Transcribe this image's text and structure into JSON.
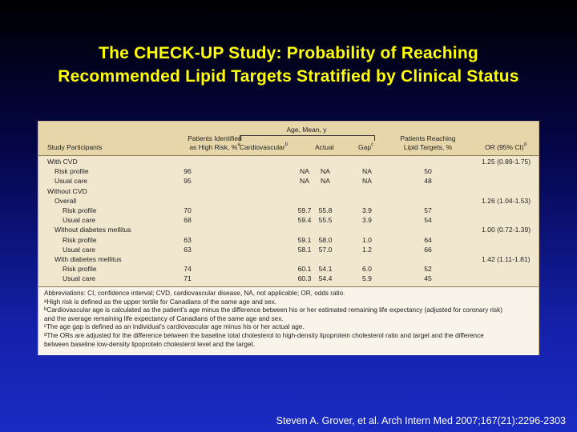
{
  "title": {
    "line1": "The CHECK-UP Study: Probability of Reaching",
    "line2": "Recommended Lipid Targets Stratified by Clinical Status"
  },
  "table": {
    "headers": {
      "participants": "Study Participants",
      "high_risk_line1": "Patients Identified",
      "high_risk_line2": "as High Risk, %",
      "high_risk_sup": "a",
      "age_group": "Age, Mean, y",
      "cardio": "Cardiovascular",
      "cardio_sup": "b",
      "actual": "Actual",
      "gap": "Gap",
      "gap_sup": "c",
      "reaching_line1": "Patients Reaching",
      "reaching_line2": "Lipid Targets, %",
      "or": "OR (95% CI)",
      "or_sup": "d"
    },
    "rows": [
      {
        "label": "With CVD",
        "level": 0,
        "risk": "",
        "cardio": "",
        "actual": "",
        "gap": "",
        "reach": "",
        "or": "1.25 (0.89-1.75)"
      },
      {
        "label": "Risk profile",
        "level": 1,
        "risk": "96",
        "cardio": "NA",
        "actual": "NA",
        "gap": "NA",
        "reach": "50",
        "or": ""
      },
      {
        "label": "Usual care",
        "level": 1,
        "risk": "95",
        "cardio": "NA",
        "actual": "NA",
        "gap": "NA",
        "reach": "48",
        "or": ""
      },
      {
        "label": "Without CVD",
        "level": 0,
        "risk": "",
        "cardio": "",
        "actual": "",
        "gap": "",
        "reach": "",
        "or": ""
      },
      {
        "label": "Overall",
        "level": 1,
        "risk": "",
        "cardio": "",
        "actual": "",
        "gap": "",
        "reach": "",
        "or": "1.26 (1.04-1.53)"
      },
      {
        "label": "Risk profile",
        "level": 2,
        "risk": "70",
        "cardio": "59.7",
        "actual": "55.8",
        "gap": "3.9",
        "reach": "57",
        "or": ""
      },
      {
        "label": "Usual care",
        "level": 2,
        "risk": "68",
        "cardio": "59.4",
        "actual": "55.5",
        "gap": "3.9",
        "reach": "54",
        "or": ""
      },
      {
        "label": "Without diabetes mellitus",
        "level": 1,
        "risk": "",
        "cardio": "",
        "actual": "",
        "gap": "",
        "reach": "",
        "or": "1.00 (0.72-1.39)"
      },
      {
        "label": "Risk profile",
        "level": 2,
        "risk": "63",
        "cardio": "59.1",
        "actual": "58.0",
        "gap": "1.0",
        "reach": "64",
        "or": ""
      },
      {
        "label": "Usual care",
        "level": 2,
        "risk": "63",
        "cardio": "58.1",
        "actual": "57.0",
        "gap": "1.2",
        "reach": "66",
        "or": ""
      },
      {
        "label": "With diabetes mellitus",
        "level": 1,
        "risk": "",
        "cardio": "",
        "actual": "",
        "gap": "",
        "reach": "",
        "or": "1.42 (1.11-1.81)"
      },
      {
        "label": "Risk profile",
        "level": 2,
        "risk": "74",
        "cardio": "60.1",
        "actual": "54.1",
        "gap": "6.0",
        "reach": "52",
        "or": ""
      },
      {
        "label": "Usual care",
        "level": 2,
        "risk": "71",
        "cardio": "60.3",
        "actual": "54.4",
        "gap": "5.9",
        "reach": "45",
        "or": ""
      }
    ]
  },
  "footnotes": {
    "abbreviations": "Abbreviations: CI, confidence interval; CVD, cardiovascular disease, NA, not applicable; OR, odds ratio.",
    "a_mark": "a",
    "a": "High risk is defined as the upper tertile for Canadians of the same age and sex.",
    "b_mark": "b",
    "b_line1": "Cardiovascular age is calculated as the patient’s age minus the difference between his or her estimated remaining life expectancy (adjusted for coronary risk)",
    "b_line2": "and the average remaining life expectancy of Canadians of the same age and sex.",
    "c_mark": "c",
    "c": "The age gap is defined as an individual’s cardiovascular age minus his or her actual age.",
    "d_mark": "d",
    "d_line1": "The ORs are adjusted for the difference between the baseline total cholesterol to high-density lipoprotein cholesterol ratio and target and the difference",
    "d_line2": "between baseline low-density lipoprotein cholesterol level and the target."
  },
  "citation": "Steven A. Grover, et al. Arch Intern Med 2007;167(21):2296-2303"
}
